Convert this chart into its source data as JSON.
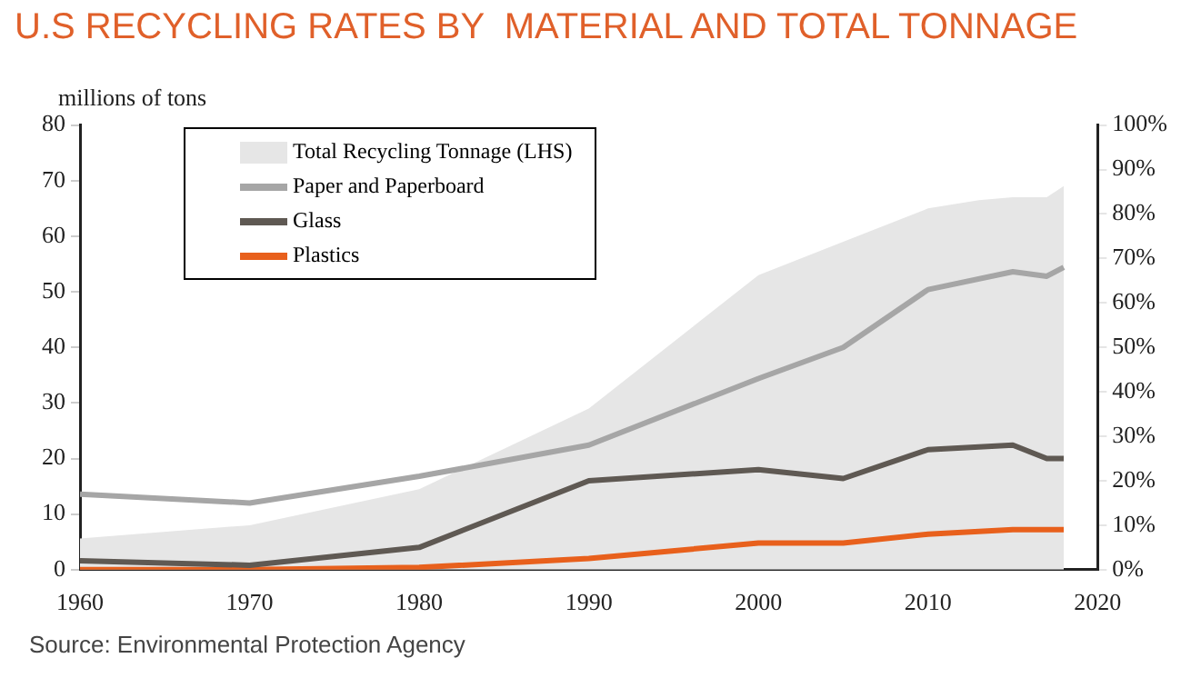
{
  "chart_data": {
    "type": "line",
    "title": "U.S RECYCLING RATES BY  MATERIAL AND TOTAL TONNAGE",
    "ylabel": "millions of tons",
    "annotations": [
      "Source: Environmental Protection Agency"
    ],
    "x": [
      1960,
      1970,
      1980,
      1990,
      2000,
      2005,
      2010,
      2015,
      2017,
      2018
    ],
    "series": [
      {
        "name": "Total Recycling Tonnage (LHS)",
        "type": "area",
        "color": "#e6e6e6",
        "x": [
          1960,
          1970,
          1980,
          1990,
          2000,
          2005,
          2010,
          2013,
          2015,
          2017,
          2018
        ],
        "values": [
          5.6,
          8,
          14.5,
          29,
          53,
          59,
          65,
          66.5,
          67,
          67,
          69
        ]
      },
      {
        "name": "Paper and Paperboard",
        "color": "#a6a6a6",
        "axis": "y2",
        "values": [
          17,
          15,
          21,
          28,
          43,
          50,
          63,
          67,
          66,
          68
        ]
      },
      {
        "name": "Glass",
        "color": "#5f5953",
        "axis": "y2",
        "values": [
          2,
          1,
          5,
          20,
          22.5,
          20.5,
          27,
          28,
          25,
          25
        ]
      },
      {
        "name": "Plastics",
        "color": "#e8601c",
        "axis": "y2",
        "values": [
          0,
          0,
          0.5,
          2.5,
          6,
          6,
          8,
          9,
          9,
          9
        ]
      }
    ],
    "xlim": [
      1960,
      2020
    ],
    "xticks": [
      1960,
      1970,
      1980,
      1990,
      2000,
      2010,
      2020
    ],
    "ylim": [
      0,
      80
    ],
    "yticks": [
      0,
      10,
      20,
      30,
      40,
      50,
      60,
      70,
      80
    ],
    "y2lim": [
      0,
      100
    ],
    "y2ticks": [
      {
        "value": 0,
        "label": "0%"
      },
      {
        "value": 10,
        "label": "10%"
      },
      {
        "value": 20,
        "label": "20%"
      },
      {
        "value": 30,
        "label": "30%"
      },
      {
        "value": 40,
        "label": "40%"
      },
      {
        "value": 50,
        "label": "50%"
      },
      {
        "value": 60,
        "label": "60%"
      },
      {
        "value": 70,
        "label": "70%"
      },
      {
        "value": 80,
        "label": "80%"
      },
      {
        "value": 90,
        "label": "90%"
      },
      {
        "value": 100,
        "label": "100%"
      }
    ],
    "grid": false,
    "legend": "top left",
    "marker": "none",
    "line_style": "solid"
  }
}
